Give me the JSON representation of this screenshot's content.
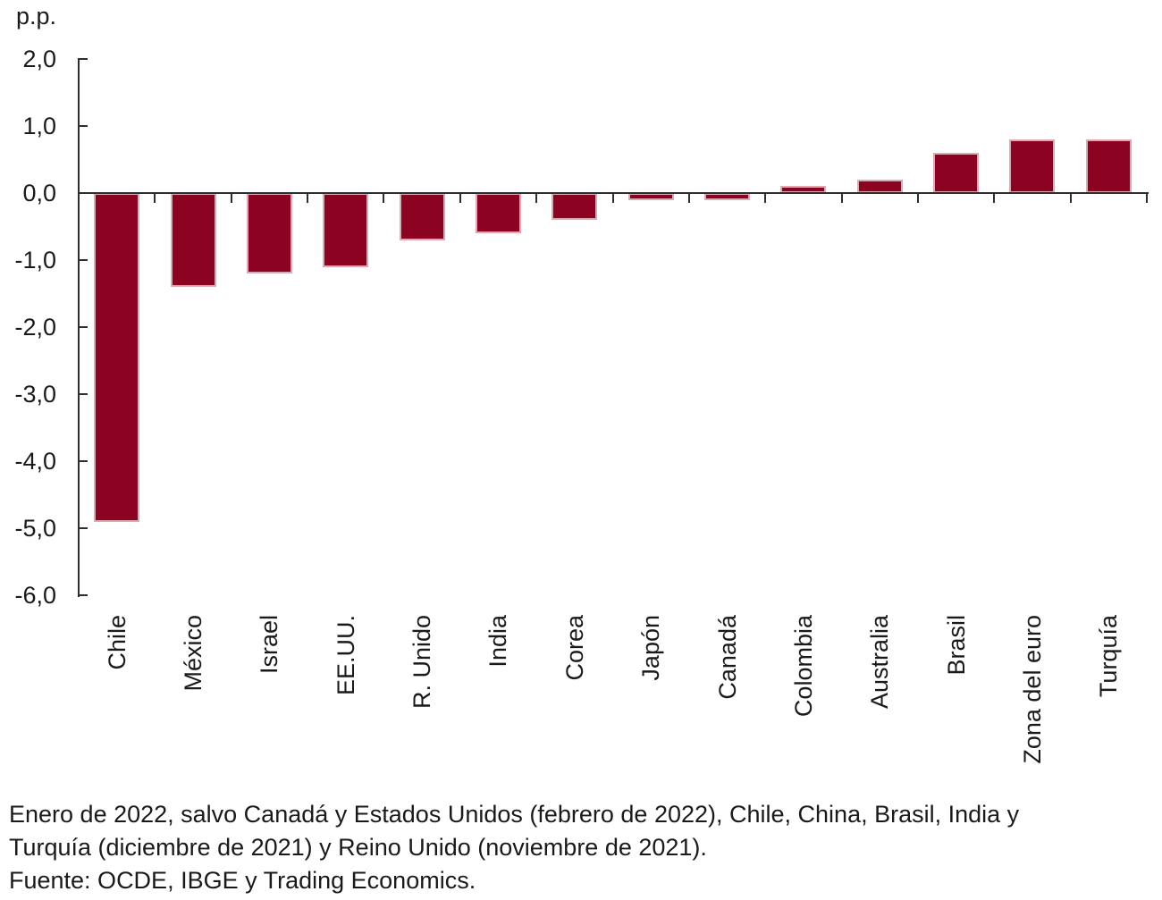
{
  "chart_data": {
    "type": "bar",
    "title": "",
    "ylabel": "p.p.",
    "categories": [
      "Chile",
      "México",
      "Israel",
      "EE.UU.",
      "R. Unido",
      "India",
      "Corea",
      "Japón",
      "Canadá",
      "Colombia",
      "Australia",
      "Brasil",
      "Zona del euro",
      "Turquía"
    ],
    "values": [
      -4.9,
      -1.4,
      -1.2,
      -1.1,
      -0.7,
      -0.6,
      -0.4,
      -0.1,
      -0.1,
      0.1,
      0.2,
      0.6,
      0.8,
      0.8
    ],
    "ylim": [
      -6.0,
      2.0
    ],
    "ytick_interval": 1.0,
    "ytick_labels": [
      "2,0",
      "1,0",
      "0,0",
      "-1,0",
      "-2,0",
      "-3,0",
      "-4,0",
      "-5,0",
      "-6,0"
    ],
    "grid": false,
    "legend": false,
    "colors": {
      "bar": "#8C0322",
      "bar_edge": "#DCA9B2",
      "axis": "#2D2D2D",
      "text": "#1A1A1A"
    }
  },
  "footer": {
    "lines": [
      "Enero de 2022, salvo Canadá y Estados Unidos (febrero de 2022), Chile, China, Brasil, India y",
      "Turquía (diciembre de 2021) y Reino Unido (noviembre de 2021).",
      "Fuente: OCDE, IBGE y Trading Economics."
    ]
  }
}
